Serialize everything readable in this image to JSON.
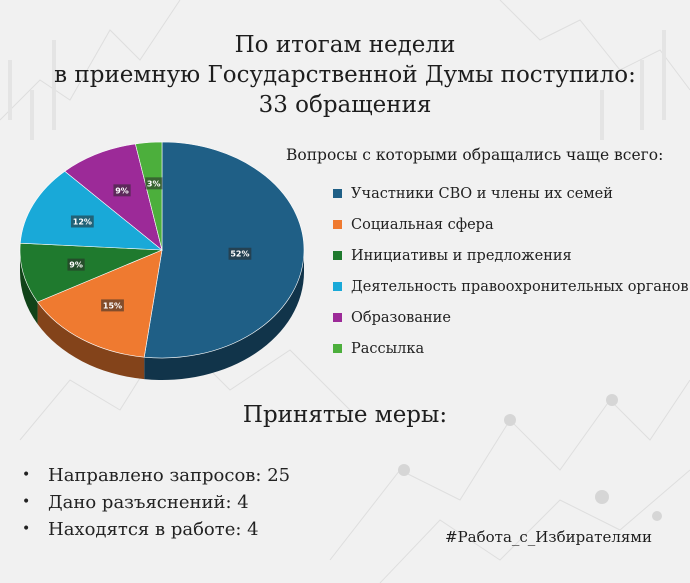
{
  "title_lines": [
    "По итогам недели",
    "в приемную Государственной Думы поступило:",
    "33 обращения"
  ],
  "legend_title": "Вопросы с которыми обращались чаще всего:",
  "chart_data": {
    "type": "pie",
    "categories": [
      "Участники СВО и члены их семей",
      "Социальная сфера",
      "Инициативы и предложения",
      "Деятельность правоохронительных органов",
      "Образование",
      "Рассылка"
    ],
    "values": [
      52,
      15,
      9,
      12,
      9,
      3
    ],
    "value_labels": [
      "52%",
      "15%",
      "9%",
      "12%",
      "9%",
      "3%"
    ],
    "colors": [
      "#1f5f86",
      "#ef7a30",
      "#1f7a2e",
      "#19a9d8",
      "#9c2a98",
      "#4caf3c"
    ],
    "legend_position": "right"
  },
  "measures_title": "Принятые меры:",
  "measures": [
    "Направлено запросов: 25",
    "Дано разъяснений: 4",
    "Находятся в работе: 4"
  ],
  "hashtag": "#Работа_с_Избирателями"
}
